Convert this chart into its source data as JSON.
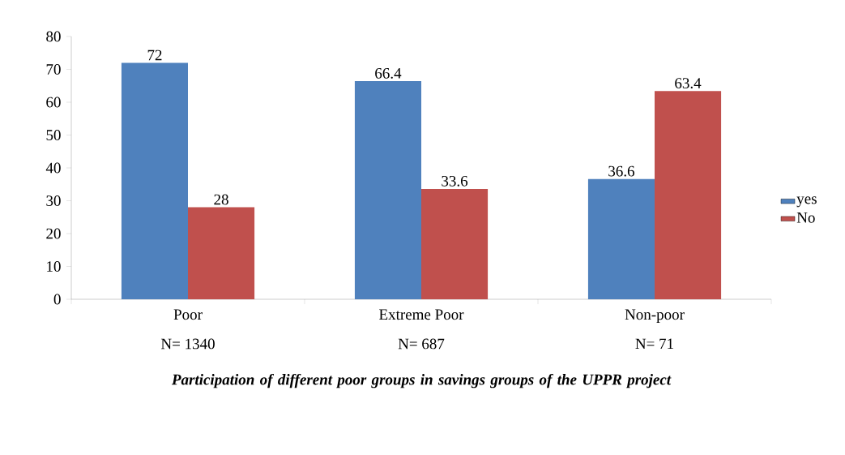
{
  "chart_data": {
    "type": "bar",
    "categories": [
      "Poor",
      "Extreme Poor",
      "Non-poor"
    ],
    "series": [
      {
        "name": "yes",
        "color": "#4f81bd",
        "values": [
          72,
          66.4,
          36.6
        ]
      },
      {
        "name": "No",
        "color": "#c0504d",
        "values": [
          28,
          33.6,
          63.4
        ]
      }
    ],
    "xlabel": "Participation of different poor groups in  savings groups of the UPPR project",
    "annotations": [
      "N= 1340",
      "N= 687",
      "N= 71"
    ],
    "ylim": [
      0,
      80
    ],
    "yticks": [
      0,
      10,
      20,
      30,
      40,
      50,
      60,
      70,
      80
    ],
    "data_labels": true,
    "legend": "right",
    "grid": false
  }
}
